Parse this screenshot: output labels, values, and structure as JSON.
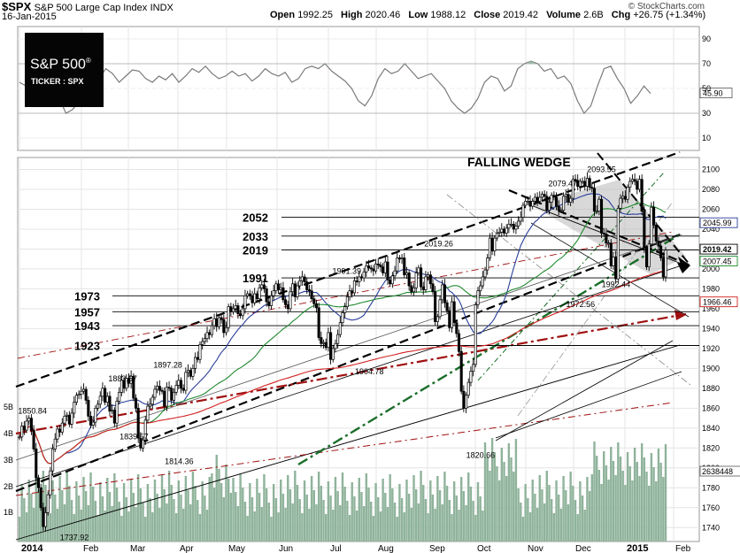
{
  "header": {
    "symbol": "$SPX",
    "name": "S&P 500 Large Cap Index",
    "exchange": "INDX",
    "date": "16-Jan-2015",
    "open_label": "Open",
    "open": "1992.25",
    "high_label": "High",
    "high": "2020.46",
    "low_label": "Low",
    "low": "1988.12",
    "close_label": "Close",
    "close": "2019.42",
    "volume_label": "Volume",
    "volume": "2.6B",
    "chg_label": "Chg",
    "chg": "+26.75 (+1.34%)",
    "credit": "© StockCharts.com"
  },
  "logo": {
    "main": "S&P 500",
    "registered": "®",
    "sub": "TICKER : SPX"
  },
  "colors": {
    "candle": "#000000",
    "volume": "#8fb39b",
    "rsi": "#7a7a7a",
    "rsi_fill": "#8fb39b",
    "ma_fast": "#2a3f9a",
    "ma_mid": "#1e8a2e",
    "ma_slow": "#d22020",
    "wedge_fill": "#b8b8b8",
    "channel": "#000000",
    "redline": "#a01010",
    "greenline": "#1a6e2a"
  },
  "chart_data": [
    {
      "type": "line",
      "panel": "rsi",
      "y_ticks": [
        10,
        30,
        50,
        70,
        90
      ],
      "ylim": [
        0,
        100
      ],
      "last_value": "45.90",
      "values": [
        55,
        52,
        48,
        58,
        60,
        52,
        42,
        30,
        33,
        40,
        55,
        62,
        58,
        66,
        62,
        55,
        60,
        65,
        64,
        58,
        55,
        60,
        57,
        62,
        55,
        60,
        66,
        63,
        68,
        62,
        58,
        60,
        64,
        60,
        62,
        56,
        60,
        66,
        62,
        60,
        63,
        55,
        58,
        66,
        68,
        66,
        70,
        64,
        60,
        56,
        50,
        40,
        36,
        44,
        58,
        66,
        62,
        64,
        70,
        64,
        58,
        60,
        62,
        56,
        50,
        40,
        34,
        30,
        34,
        42,
        55,
        60,
        58,
        48,
        52,
        66,
        70,
        72,
        70,
        64,
        66,
        58,
        60,
        54,
        40,
        30,
        36,
        52,
        66,
        68,
        58,
        50,
        38,
        44,
        52,
        46
      ]
    },
    {
      "type": "candlestick",
      "panel": "price",
      "title": "FALLING WEDGE",
      "x_ticks": [
        "2014",
        "Feb",
        "Mar",
        "Apr",
        "May",
        "Jun",
        "Jul",
        "Aug",
        "Sep",
        "Oct",
        "Nov",
        "Dec",
        "2015",
        "Feb"
      ],
      "y_ticks": [
        1740,
        1760,
        1780,
        1800,
        1820,
        1840,
        1860,
        1880,
        1900,
        1920,
        1940,
        1960,
        1980,
        2000,
        2020,
        2040,
        2060,
        2080,
        2100
      ],
      "ylim": [
        1726,
        2112
      ],
      "ylim_note": "",
      "labels_right": [
        "2045.99",
        "2019.42",
        "2007.45",
        "1966.46"
      ],
      "annotations": [
        {
          "text": "1850.84",
          "x": "2014-01-10",
          "y": 1850.84
        },
        {
          "text": "1737.92",
          "x": "2014-02-05",
          "y": 1737.92
        },
        {
          "text": "1883.57",
          "x": "2014-03-07",
          "y": 1883.57
        },
        {
          "text": "1839.57",
          "x": "2014-03-14",
          "y": 1839.57
        },
        {
          "text": "1897.28",
          "x": "2014-04-04",
          "y": 1897.28
        },
        {
          "text": "1814.36",
          "x": "2014-04-11",
          "y": 1814.36
        },
        {
          "text": "1991.39",
          "x": "2014-07-24",
          "y": 1991.39
        },
        {
          "text": "1904.78",
          "x": "2014-08-07",
          "y": 1904.78
        },
        {
          "text": "2019.26",
          "x": "2014-09-19",
          "y": 2019.26
        },
        {
          "text": "1820.66",
          "x": "2014-10-15",
          "y": 1820.66
        },
        {
          "text": "2079.47",
          "x": "2014-12-05",
          "y": 2079.47
        },
        {
          "text": "2093.55",
          "x": "2014-12-29",
          "y": 2093.55
        },
        {
          "text": "1972.56",
          "x": "2014-12-16",
          "y": 1972.56
        },
        {
          "text": "1992.44",
          "x": "2015-01-07",
          "y": 1992.44
        }
      ],
      "levels": [
        2052,
        2033,
        2019,
        1991,
        1973,
        1957,
        1943,
        1923
      ],
      "volume_axis": [
        "1B",
        "2B",
        "3B",
        "4B",
        "5B"
      ],
      "volume_last": "2638448",
      "closes": [
        1831,
        1842,
        1838,
        1847,
        1850,
        1838,
        1819,
        1790,
        1780,
        1760,
        1741,
        1755,
        1773,
        1797,
        1819,
        1829,
        1839,
        1836,
        1845,
        1852,
        1853,
        1844,
        1855,
        1866,
        1873,
        1874,
        1877,
        1879,
        1868,
        1852,
        1843,
        1846,
        1860,
        1864,
        1872,
        1880,
        1866,
        1872,
        1857,
        1858,
        1845,
        1867,
        1876,
        1888,
        1880,
        1890,
        1885,
        1892,
        1870,
        1860,
        1830,
        1820,
        1828,
        1848,
        1862,
        1864,
        1871,
        1879,
        1882,
        1878,
        1877,
        1862,
        1881,
        1880,
        1868,
        1876,
        1883,
        1888,
        1880,
        1878,
        1896,
        1898,
        1892,
        1900,
        1911,
        1909,
        1924,
        1927,
        1930,
        1936,
        1934,
        1943,
        1950,
        1942,
        1951,
        1949,
        1936,
        1941,
        1962,
        1957,
        1960,
        1963,
        1955,
        1953,
        1960,
        1973,
        1975,
        1973,
        1966,
        1975,
        1970,
        1981,
        1984,
        1980,
        1967,
        1963,
        1973,
        1978,
        1985,
        1979,
        1981,
        1969,
        1964,
        1960,
        1977,
        1985,
        1972,
        1983,
        1988,
        1992,
        1987,
        1979,
        1978,
        1970,
        1965,
        1961,
        1931,
        1925,
        1926,
        1921,
        1936,
        1909,
        1920,
        1925,
        1934,
        1946,
        1956,
        1962,
        1972,
        1978,
        1976,
        1988,
        1987,
        1992,
        1991,
        1997,
        2003,
        2001,
        2000,
        1998,
        2005,
        2004,
        2002,
        1996,
        2007,
        1989,
        1985,
        1993,
        1998,
        2011,
        2010,
        2011,
        1994,
        1996,
        1983,
        1977,
        1981,
        1996,
        2001,
        1982,
        1979,
        1992,
        1994,
        1985,
        1977,
        1947,
        1952,
        1969,
        1984,
        1966,
        1958,
        1941,
        1967,
        1946,
        1935,
        1917,
        1877,
        1860,
        1873,
        1886,
        1897,
        1904,
        1964,
        1978,
        1983,
        1992,
        1999,
        2011,
        2031,
        2018,
        2031,
        2036,
        2037,
        2040,
        2036,
        2041,
        2045,
        2045,
        2040,
        2043,
        2048,
        2052,
        2064,
        2068,
        2068,
        2063,
        2068,
        2072,
        2068,
        2072,
        2075,
        2073,
        2059,
        2067,
        2074,
        2072,
        2063,
        2059,
        2059,
        2073,
        2075,
        2067,
        2071,
        2090,
        2089,
        2083,
        2088,
        2088,
        2083,
        2091,
        2082,
        2081,
        2058,
        2058,
        2070,
        2036,
        2035,
        2026,
        2026,
        2003,
        2012,
        1990,
        2061,
        2071,
        2073,
        2070,
        2082,
        2088,
        2090,
        2088,
        2080,
        2090,
        2058,
        2021,
        2002,
        2025,
        2062,
        2044,
        2028,
        2023,
        2011,
        1992,
        2019
      ]
    }
  ]
}
